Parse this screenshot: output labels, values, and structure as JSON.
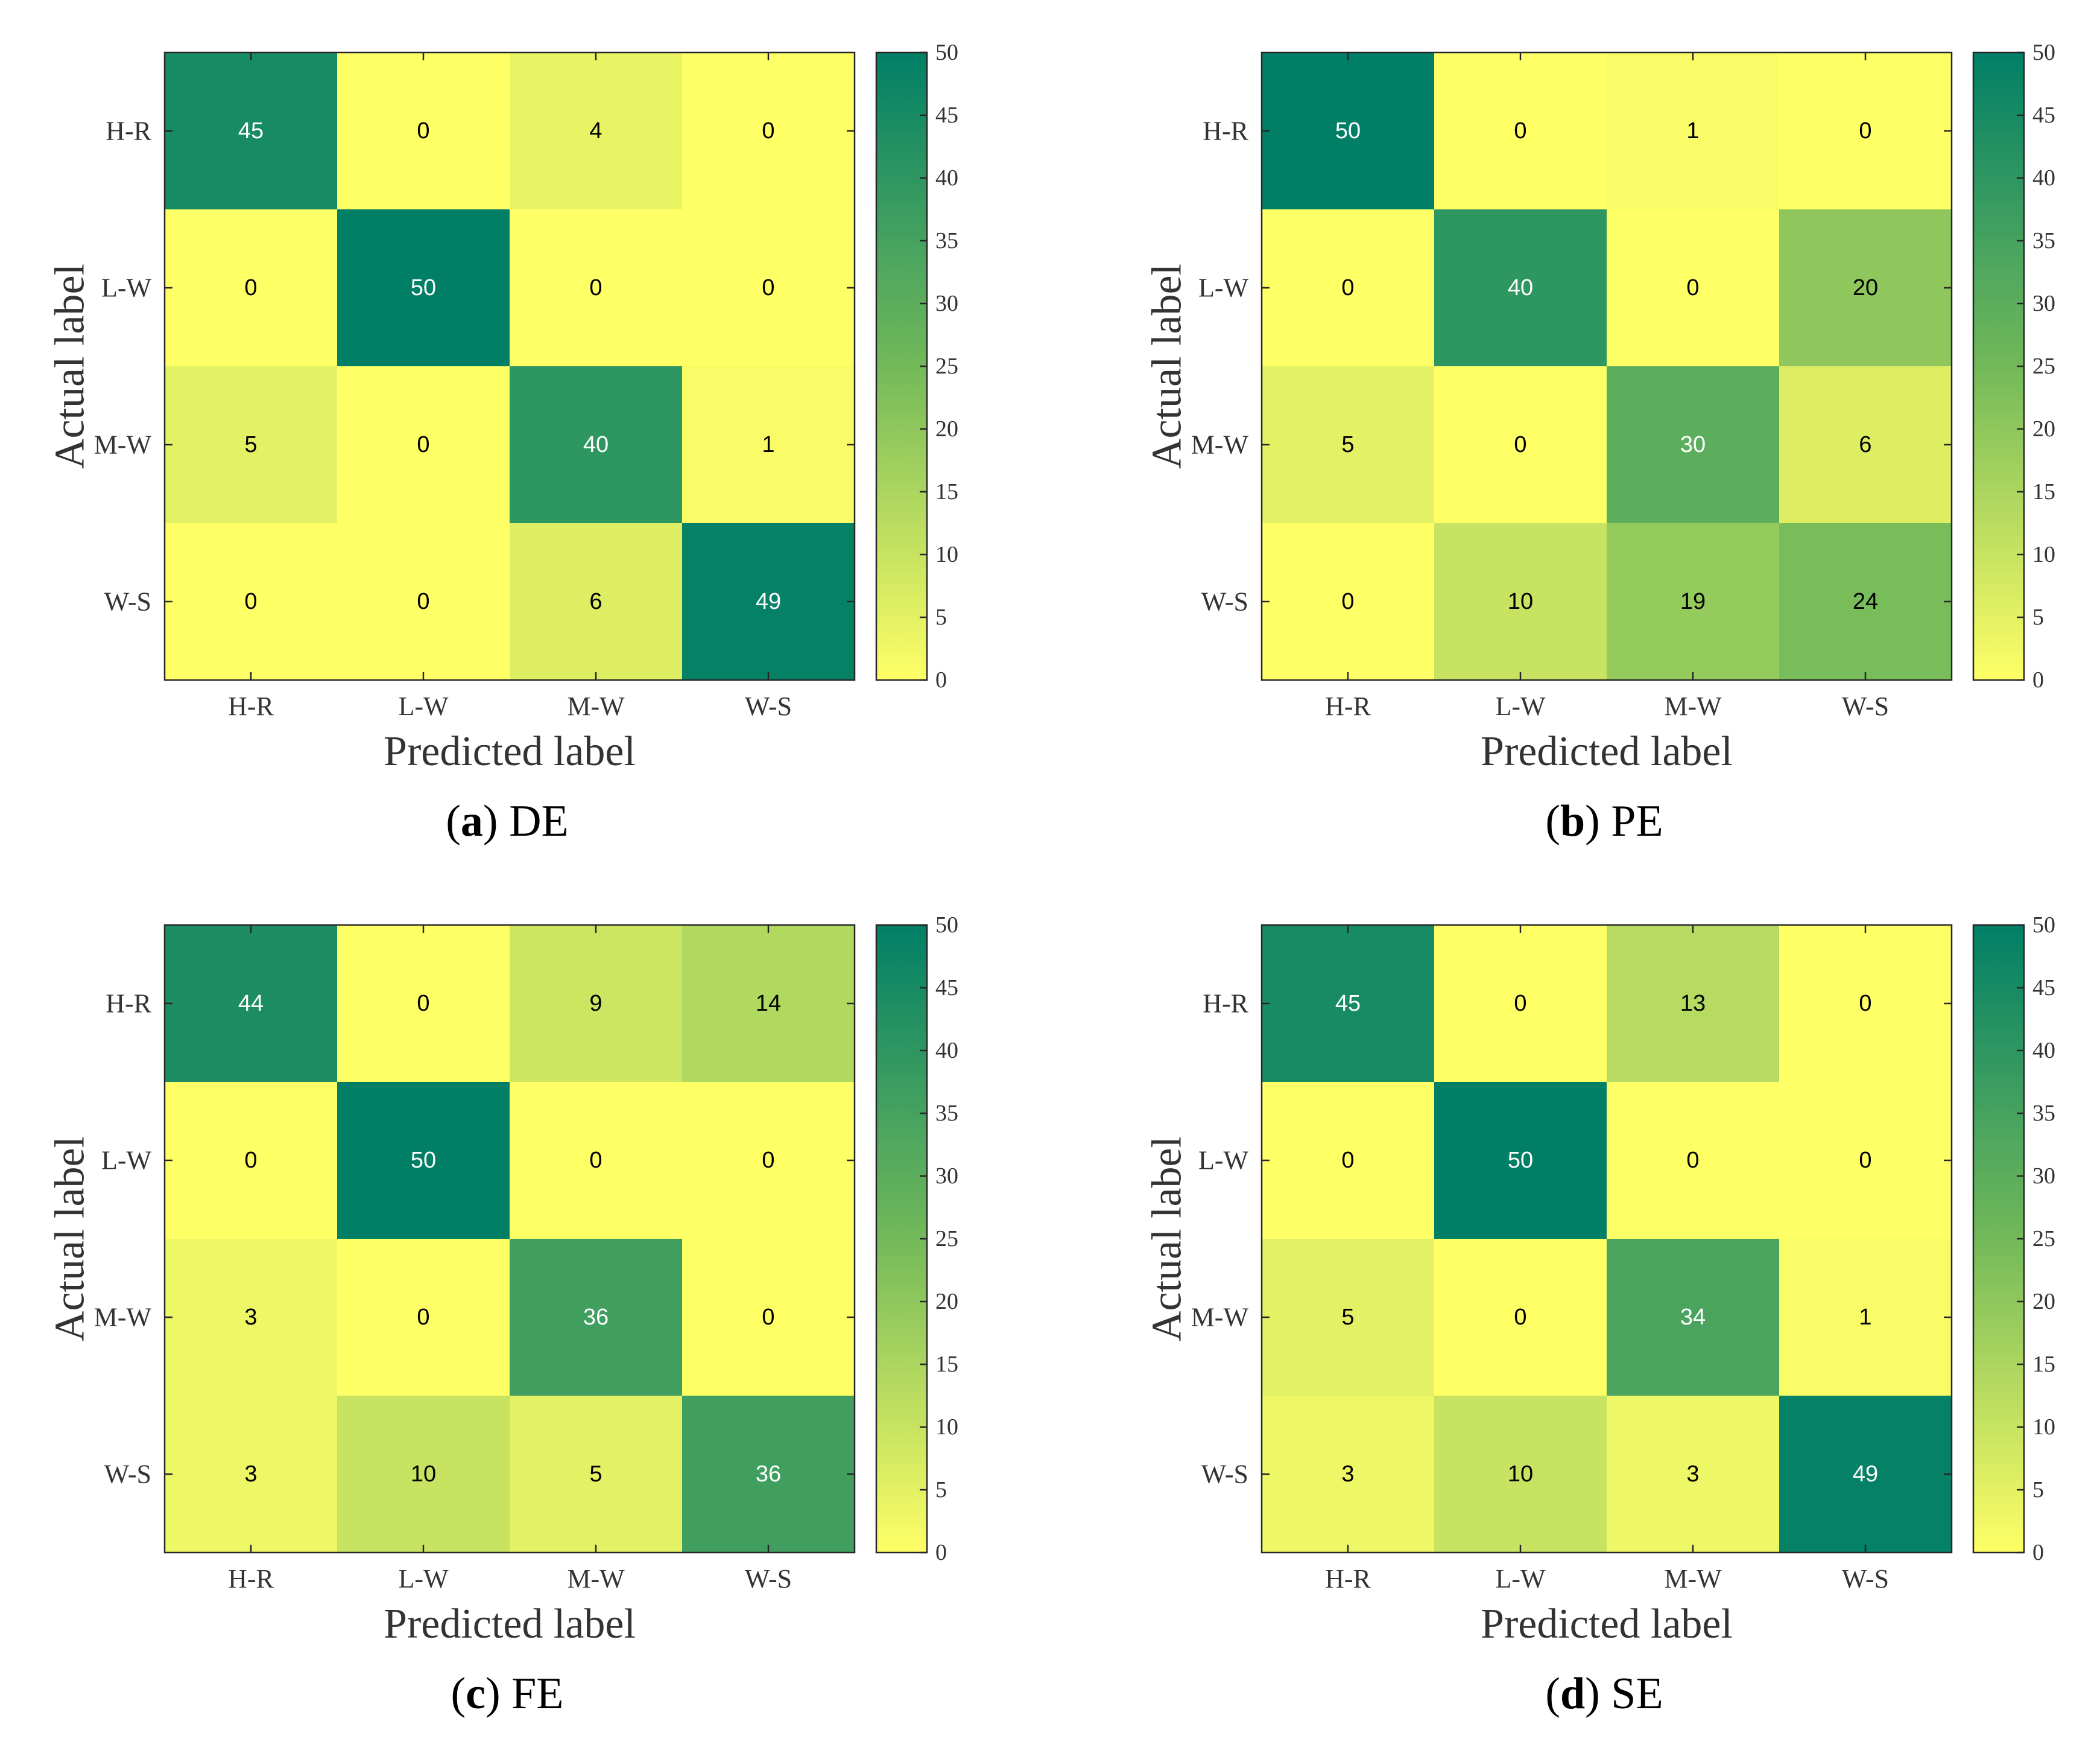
{
  "chart_data": [
    {
      "type": "heatmap",
      "panel_letter": "a",
      "panel_title": "DE",
      "categories": [
        "H-R",
        "L-W",
        "M-W",
        "W-S"
      ],
      "xlabel": "Predicted label",
      "ylabel": "Actual label",
      "values": [
        [
          45,
          0,
          4,
          0
        ],
        [
          0,
          50,
          0,
          0
        ],
        [
          5,
          0,
          40,
          1
        ],
        [
          0,
          0,
          6,
          49
        ]
      ],
      "colorbar": {
        "range": [
          0,
          50
        ],
        "ticks": [
          0,
          5,
          10,
          15,
          20,
          25,
          30,
          35,
          40,
          45,
          50
        ]
      }
    },
    {
      "type": "heatmap",
      "panel_letter": "b",
      "panel_title": "PE",
      "categories": [
        "H-R",
        "L-W",
        "M-W",
        "W-S"
      ],
      "xlabel": "Predicted label",
      "ylabel": "Actual label",
      "values": [
        [
          50,
          0,
          1,
          0
        ],
        [
          0,
          40,
          0,
          20
        ],
        [
          5,
          0,
          30,
          6
        ],
        [
          0,
          10,
          19,
          24
        ]
      ],
      "colorbar": {
        "range": [
          0,
          50
        ],
        "ticks": [
          0,
          5,
          10,
          15,
          20,
          25,
          30,
          35,
          40,
          45,
          50
        ]
      }
    },
    {
      "type": "heatmap",
      "panel_letter": "c",
      "panel_title": "FE",
      "categories": [
        "H-R",
        "L-W",
        "M-W",
        "W-S"
      ],
      "xlabel": "Predicted label",
      "ylabel": "Actual label",
      "values": [
        [
          44,
          0,
          9,
          14
        ],
        [
          0,
          50,
          0,
          0
        ],
        [
          3,
          0,
          36,
          0
        ],
        [
          3,
          10,
          5,
          36
        ]
      ],
      "colorbar": {
        "range": [
          0,
          50
        ],
        "ticks": [
          0,
          5,
          10,
          15,
          20,
          25,
          30,
          35,
          40,
          45,
          50
        ]
      }
    },
    {
      "type": "heatmap",
      "panel_letter": "d",
      "panel_title": "SE",
      "categories": [
        "H-R",
        "L-W",
        "M-W",
        "W-S"
      ],
      "xlabel": "Predicted label",
      "ylabel": "Actual label",
      "values": [
        [
          45,
          0,
          13,
          0
        ],
        [
          0,
          50,
          0,
          0
        ],
        [
          5,
          0,
          34,
          1
        ],
        [
          3,
          10,
          3,
          49
        ]
      ],
      "colorbar": {
        "range": [
          0,
          50
        ],
        "ticks": [
          0,
          5,
          10,
          15,
          20,
          25,
          30,
          35,
          40,
          45,
          50
        ]
      }
    }
  ],
  "colors": {
    "low": "#ffff66",
    "mid": "#73b95a",
    "high": "#007f66",
    "frame": "#262626",
    "dark_cell_text": "#ffffff",
    "light_cell_text": "#000000"
  }
}
